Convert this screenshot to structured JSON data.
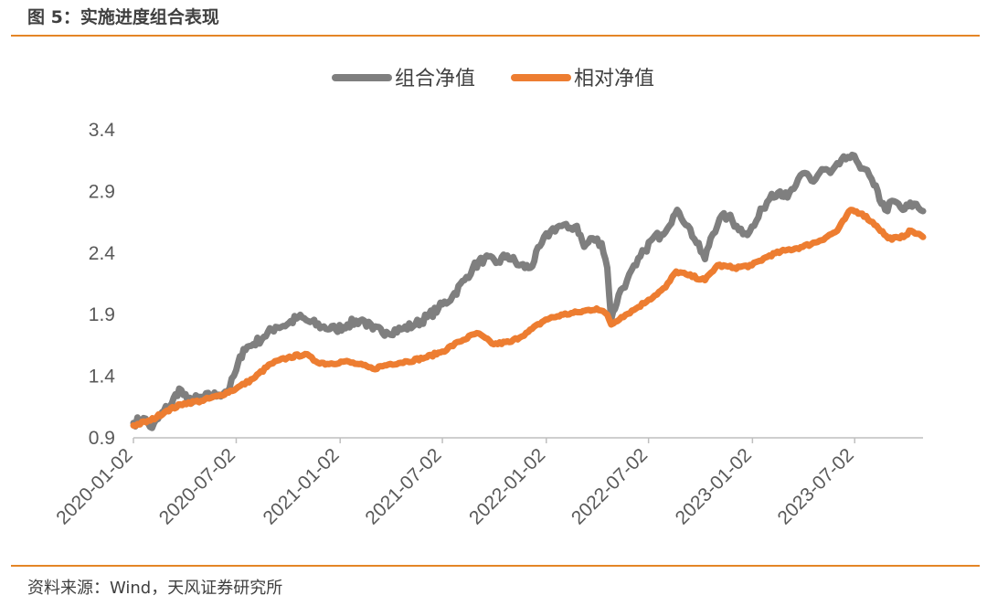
{
  "figure": {
    "title": "图 5：实施进度组合表现",
    "source": "资料来源：Wind，天风证券研究所"
  },
  "chart_data": {
    "type": "line",
    "title": "",
    "xlabel": "",
    "ylabel": "",
    "ylim": [
      0.9,
      3.4
    ],
    "yticks": [
      "0.9",
      "1.4",
      "1.9",
      "2.4",
      "2.9",
      "3.4"
    ],
    "xticks": [
      "2020-01-02",
      "2020-07-02",
      "2021-01-02",
      "2021-07-02",
      "2022-01-02",
      "2022-07-02",
      "2023-01-02",
      "2023-07-02"
    ],
    "x_end": "2023-10-31",
    "grid": false,
    "legend_position": "top-center",
    "series": [
      {
        "name": "组合净值",
        "color": "#7f7f7f",
        "points": [
          [
            "2020-01-02",
            1.02
          ],
          [
            "2020-01-20",
            1.06
          ],
          [
            "2020-02-04",
            0.98
          ],
          [
            "2020-02-25",
            1.12
          ],
          [
            "2020-03-10",
            1.18
          ],
          [
            "2020-03-23",
            1.3
          ],
          [
            "2020-04-07",
            1.2
          ],
          [
            "2020-05-06",
            1.23
          ],
          [
            "2020-06-01",
            1.25
          ],
          [
            "2020-06-20",
            1.3
          ],
          [
            "2020-07-02",
            1.45
          ],
          [
            "2020-07-15",
            1.62
          ],
          [
            "2020-08-01",
            1.66
          ],
          [
            "2020-08-20",
            1.72
          ],
          [
            "2020-09-10",
            1.8
          ],
          [
            "2020-09-30",
            1.82
          ],
          [
            "2020-10-20",
            1.88
          ],
          [
            "2020-11-10",
            1.84
          ],
          [
            "2020-12-01",
            1.8
          ],
          [
            "2020-12-25",
            1.78
          ],
          [
            "2021-01-15",
            1.82
          ],
          [
            "2021-02-10",
            1.86
          ],
          [
            "2021-03-01",
            1.78
          ],
          [
            "2021-03-25",
            1.76
          ],
          [
            "2021-04-20",
            1.78
          ],
          [
            "2021-05-15",
            1.82
          ],
          [
            "2021-06-05",
            1.88
          ],
          [
            "2021-06-25",
            1.95
          ],
          [
            "2021-07-20",
            2.05
          ],
          [
            "2021-08-10",
            2.18
          ],
          [
            "2021-08-25",
            2.28
          ],
          [
            "2021-09-15",
            2.36
          ],
          [
            "2021-10-05",
            2.32
          ],
          [
            "2021-10-25",
            2.38
          ],
          [
            "2021-11-15",
            2.3
          ],
          [
            "2021-12-05",
            2.28
          ],
          [
            "2021-12-25",
            2.48
          ],
          [
            "2022-01-10",
            2.58
          ],
          [
            "2022-01-25",
            2.62
          ],
          [
            "2022-02-10",
            2.6
          ],
          [
            "2022-02-25",
            2.62
          ],
          [
            "2022-03-10",
            2.45
          ],
          [
            "2022-03-25",
            2.52
          ],
          [
            "2022-04-10",
            2.48
          ],
          [
            "2022-04-20",
            2.28
          ],
          [
            "2022-04-27",
            1.86
          ],
          [
            "2022-05-10",
            2.06
          ],
          [
            "2022-05-25",
            2.18
          ],
          [
            "2022-06-10",
            2.3
          ],
          [
            "2022-06-25",
            2.42
          ],
          [
            "2022-07-10",
            2.52
          ],
          [
            "2022-07-25",
            2.55
          ],
          [
            "2022-08-15",
            2.7
          ],
          [
            "2022-08-25",
            2.73
          ],
          [
            "2022-09-10",
            2.62
          ],
          [
            "2022-09-25",
            2.48
          ],
          [
            "2022-10-10",
            2.35
          ],
          [
            "2022-10-20",
            2.52
          ],
          [
            "2022-11-05",
            2.68
          ],
          [
            "2022-11-20",
            2.7
          ],
          [
            "2022-12-05",
            2.62
          ],
          [
            "2022-12-20",
            2.56
          ],
          [
            "2023-01-05",
            2.62
          ],
          [
            "2023-01-20",
            2.76
          ],
          [
            "2023-02-05",
            2.88
          ],
          [
            "2023-02-20",
            2.9
          ],
          [
            "2023-03-05",
            2.85
          ],
          [
            "2023-03-20",
            2.95
          ],
          [
            "2023-04-05",
            3.05
          ],
          [
            "2023-04-20",
            2.98
          ],
          [
            "2023-05-05",
            3.08
          ],
          [
            "2023-05-20",
            3.05
          ],
          [
            "2023-06-05",
            3.12
          ],
          [
            "2023-06-20",
            3.18
          ],
          [
            "2023-07-05",
            3.15
          ],
          [
            "2023-07-20",
            3.08
          ],
          [
            "2023-08-05",
            2.95
          ],
          [
            "2023-08-25",
            2.75
          ],
          [
            "2023-09-10",
            2.82
          ],
          [
            "2023-09-25",
            2.75
          ],
          [
            "2023-10-15",
            2.8
          ],
          [
            "2023-10-31",
            2.74
          ]
        ]
      },
      {
        "name": "相对净值",
        "color": "#ed7d31",
        "points": [
          [
            "2020-01-02",
            1.0
          ],
          [
            "2020-02-01",
            1.04
          ],
          [
            "2020-03-01",
            1.12
          ],
          [
            "2020-04-01",
            1.18
          ],
          [
            "2020-05-01",
            1.2
          ],
          [
            "2020-06-01",
            1.24
          ],
          [
            "2020-07-02",
            1.3
          ],
          [
            "2020-08-01",
            1.38
          ],
          [
            "2020-09-01",
            1.5
          ],
          [
            "2020-10-01",
            1.55
          ],
          [
            "2020-11-01",
            1.58
          ],
          [
            "2020-11-20",
            1.52
          ],
          [
            "2020-12-10",
            1.5
          ],
          [
            "2021-01-10",
            1.52
          ],
          [
            "2021-02-01",
            1.5
          ],
          [
            "2021-03-01",
            1.46
          ],
          [
            "2021-04-01",
            1.5
          ],
          [
            "2021-05-01",
            1.52
          ],
          [
            "2021-06-01",
            1.55
          ],
          [
            "2021-07-02",
            1.6
          ],
          [
            "2021-08-01",
            1.68
          ],
          [
            "2021-09-01",
            1.75
          ],
          [
            "2021-10-01",
            1.66
          ],
          [
            "2021-11-01",
            1.68
          ],
          [
            "2021-12-01",
            1.76
          ],
          [
            "2022-01-01",
            1.86
          ],
          [
            "2022-02-01",
            1.9
          ],
          [
            "2022-03-01",
            1.92
          ],
          [
            "2022-04-01",
            1.95
          ],
          [
            "2022-04-20",
            1.9
          ],
          [
            "2022-04-27",
            1.82
          ],
          [
            "2022-05-15",
            1.88
          ],
          [
            "2022-06-10",
            1.95
          ],
          [
            "2022-07-02",
            2.02
          ],
          [
            "2022-08-01",
            2.12
          ],
          [
            "2022-08-20",
            2.25
          ],
          [
            "2022-09-10",
            2.22
          ],
          [
            "2022-10-10",
            2.18
          ],
          [
            "2022-11-01",
            2.3
          ],
          [
            "2022-12-01",
            2.28
          ],
          [
            "2023-01-01",
            2.3
          ],
          [
            "2023-02-01",
            2.38
          ],
          [
            "2023-03-01",
            2.42
          ],
          [
            "2023-04-01",
            2.45
          ],
          [
            "2023-05-01",
            2.5
          ],
          [
            "2023-06-01",
            2.58
          ],
          [
            "2023-06-25",
            2.75
          ],
          [
            "2023-07-15",
            2.72
          ],
          [
            "2023-08-10",
            2.62
          ],
          [
            "2023-08-30",
            2.52
          ],
          [
            "2023-09-20",
            2.52
          ],
          [
            "2023-10-10",
            2.58
          ],
          [
            "2023-10-31",
            2.53
          ]
        ]
      }
    ]
  }
}
